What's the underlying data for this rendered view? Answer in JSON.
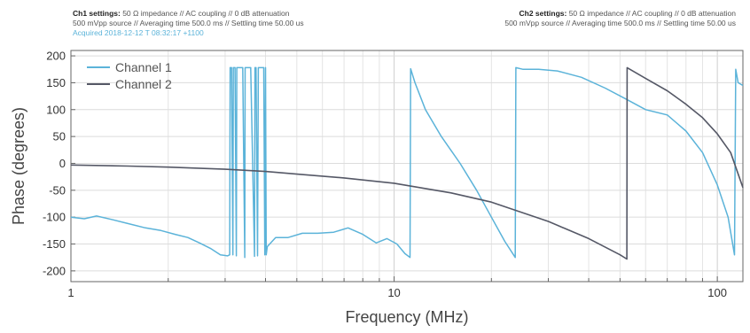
{
  "header": {
    "ch1": {
      "label": "Ch1 settings:",
      "line1": " 50 Ω impedance  //  AC coupling  //  0 dB attenuation",
      "line2": "500 mVpp source  //  Averaging time 500.0 ms  //  Settling time 50.00 us",
      "acquired": "Acquired 2018-12-12 T 08:32:17 +1100"
    },
    "ch2": {
      "label": "Ch2 settings:",
      "line1": " 50 Ω impedance  //  AC coupling  //  0 dB attenuation",
      "line2": "500 mVpp source  //  Averaging time 500.0 ms  //  Settling time 50.00 us"
    }
  },
  "chart_data": {
    "type": "line",
    "xlabel": "Frequency (MHz)",
    "ylabel": "Phase (degrees)",
    "xscale": "log",
    "xlim": [
      1,
      120
    ],
    "ylim": [
      -220,
      210
    ],
    "x_ticks": [
      1,
      10,
      100
    ],
    "y_ticks": [
      -200,
      -150,
      -100,
      -50,
      0,
      50,
      100,
      150,
      200
    ],
    "grid": true,
    "legend": "top-left",
    "series": [
      {
        "name": "Channel 1",
        "color": "#5bb3d9",
        "x": [
          1,
          1.1,
          1.2,
          1.35,
          1.5,
          1.7,
          1.9,
          2.1,
          2.3,
          2.5,
          2.7,
          2.9,
          3.05,
          3.1,
          3.11,
          3.14,
          3.17,
          3.18,
          3.22,
          3.25,
          3.26,
          3.3,
          3.4,
          3.45,
          3.46,
          3.5,
          3.6,
          3.7,
          3.71,
          3.74,
          3.78,
          3.8,
          3.81,
          3.85,
          3.95,
          3.98,
          4.0,
          4.02,
          4.05,
          4.3,
          4.7,
          5.2,
          5.8,
          6.5,
          7.2,
          8.0,
          8.8,
          9.5,
          10.2,
          10.8,
          11.2,
          11.25,
          11.6,
          12.5,
          14,
          16,
          18,
          20,
          22,
          23.7,
          23.8,
          25,
          28,
          32,
          38,
          45,
          52,
          60,
          70,
          80,
          90,
          100,
          108,
          113,
          114,
          116,
          120
        ],
        "y": [
          -100,
          -103,
          -98,
          -105,
          -112,
          -120,
          -125,
          -132,
          -138,
          -148,
          -158,
          -170,
          -172,
          -170,
          178,
          178,
          -170,
          178,
          178,
          -172,
          178,
          178,
          178,
          -175,
          178,
          178,
          178,
          -173,
          178,
          178,
          -172,
          178,
          178,
          178,
          178,
          -170,
          178,
          -170,
          -155,
          -138,
          -138,
          -130,
          -130,
          -128,
          -120,
          -132,
          -148,
          -140,
          -150,
          -168,
          -175,
          176,
          150,
          100,
          50,
          0,
          -50,
          -100,
          -145,
          -175,
          178,
          175,
          175,
          172,
          160,
          140,
          120,
          100,
          90,
          60,
          20,
          -40,
          -100,
          -170,
          175,
          150,
          145
        ]
      },
      {
        "name": "Channel 2",
        "color": "#555866",
        "x": [
          1,
          1.5,
          2,
          3,
          4,
          5,
          7,
          10,
          15,
          20,
          30,
          40,
          50,
          52.5,
          52.6,
          60,
          70,
          80,
          90,
          100,
          110,
          120
        ],
        "y": [
          -3,
          -5,
          -7,
          -11,
          -15,
          -20,
          -27,
          -37,
          -55,
          -72,
          -108,
          -140,
          -170,
          -178,
          178,
          158,
          135,
          110,
          85,
          55,
          20,
          -45
        ]
      }
    ]
  }
}
